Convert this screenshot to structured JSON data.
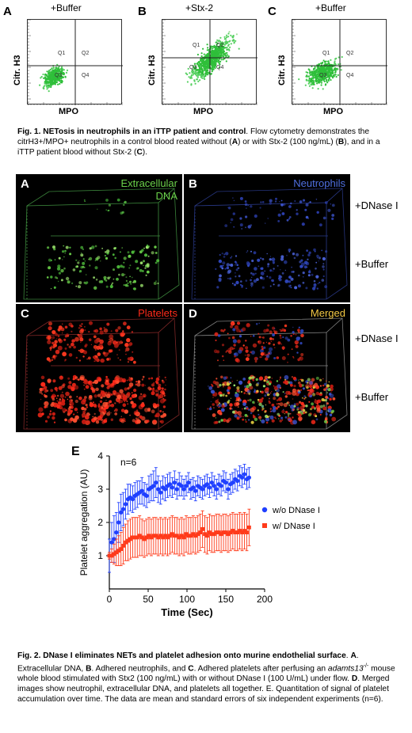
{
  "fig1": {
    "panels": [
      {
        "letter": "A",
        "condition": "+Buffer",
        "ylabel": "Citr. H3",
        "xlabel": "MPO",
        "quadrants": [
          "Q1",
          "Q2",
          "Q3",
          "Q4"
        ]
      },
      {
        "letter": "B",
        "condition": "+Stx-2",
        "ylabel": "Citr. H3",
        "xlabel": "MPO",
        "quadrants": [
          "Q1",
          "Q2",
          "Q3",
          "Q4"
        ]
      },
      {
        "letter": "C",
        "condition": "+Buffer",
        "ylabel": "Citr. H3",
        "xlabel": "MPO",
        "quadrants": [
          "Q1",
          "Q2",
          "Q3",
          "Q4"
        ]
      }
    ],
    "caption_bold": "Fig. 1. NETosis in neutrophils in an iTTP patient and control",
    "caption_lines": [
      ". Flow cytometry",
      "demonstrates the citrH3+/MPO+ neutrophils in a control blood reated without (",
      "A",
      ") or",
      "with Stx-2 (100 ng/mL) (",
      "B",
      "), and in a iTTP patient blood without Stx-2 (",
      "C",
      ")."
    ]
  },
  "fig2": {
    "panels": [
      {
        "letter": "A",
        "label": "Extracellular DNA",
        "label_line1": "Extracellular",
        "label_line2": "DNA",
        "color": "#6bd14a"
      },
      {
        "letter": "B",
        "label": "Neutrophils",
        "color": "#4f6fe0"
      },
      {
        "letter": "C",
        "label": "Platelets",
        "color": "#ff2a1a"
      },
      {
        "letter": "D",
        "label": "Merged",
        "color": "#f2c744"
      }
    ],
    "side_labels": [
      "+DNase I",
      "+Buffer",
      "+DNase I",
      "+Buffer"
    ],
    "caption": {
      "bold": "Fig. 2. DNase I eliminates NETs and platelet adhesion onto murine endothelial surface",
      "p1": ". ",
      "a": "A",
      "t1": ". Extracellular DNA, ",
      "b": "B",
      "t2": ". Adhered neutrophils, and ",
      "c": "C",
      "t3": ". Adhered platelets after perfusing an ",
      "gene": "adamts13",
      "sup": "-/-",
      "t4": " mouse whole blood stimulated with Stx2 (100 ng/mL) with or without DNase I (100 U/mL) under flow. ",
      "d": "D",
      "t5": ". Merged images show neutrophil, extracellular DNA, and platelets all together. E. Quantitation of signal of platelet accumulation over time. The data are mean and standard errors of six independent experiments (n=6)."
    }
  },
  "chart_data": {
    "type": "scatter",
    "letter": "E",
    "annotation": "n=6",
    "xlabel": "Time (Sec)",
    "ylabel": "Platelet aggregation (AU)",
    "xlim": [
      0,
      200
    ],
    "ylim": [
      0,
      4
    ],
    "xticks": [
      0,
      50,
      100,
      150,
      200
    ],
    "yticks": [
      1,
      2,
      3,
      4
    ],
    "legend_position": "right",
    "series": [
      {
        "name": "w/o DNase I",
        "color": "#1f3fff",
        "marker": "circle",
        "x": [
          0,
          3,
          6,
          9,
          12,
          15,
          18,
          21,
          24,
          27,
          30,
          33,
          36,
          39,
          42,
          45,
          48,
          51,
          54,
          57,
          60,
          63,
          66,
          69,
          72,
          75,
          78,
          81,
          84,
          87,
          90,
          93,
          96,
          99,
          102,
          105,
          108,
          111,
          114,
          117,
          120,
          123,
          126,
          129,
          132,
          135,
          138,
          141,
          144,
          147,
          150,
          153,
          156,
          159,
          162,
          165,
          168,
          171,
          174,
          177,
          180
        ],
        "y": [
          1.0,
          1.4,
          1.5,
          1.7,
          2.0,
          2.3,
          2.4,
          2.55,
          2.7,
          2.75,
          2.7,
          2.8,
          2.85,
          2.9,
          2.95,
          2.85,
          2.8,
          3.0,
          3.05,
          3.1,
          3.2,
          3.0,
          2.9,
          3.05,
          3.0,
          3.1,
          3.15,
          3.05,
          3.2,
          3.0,
          3.15,
          3.1,
          3.0,
          3.1,
          3.2,
          3.0,
          3.05,
          2.95,
          3.1,
          3.05,
          3.0,
          3.1,
          3.15,
          3.05,
          3.2,
          3.1,
          3.0,
          3.15,
          3.1,
          3.25,
          3.2,
          3.0,
          3.15,
          3.2,
          3.3,
          3.25,
          3.4,
          3.35,
          3.45,
          3.3,
          3.35
        ],
        "err": [
          0.5,
          0.6,
          0.7,
          0.6,
          0.6,
          0.55,
          0.5,
          0.45,
          0.45,
          0.4,
          0.4,
          0.4,
          0.4,
          0.35,
          0.4,
          0.35,
          0.35,
          0.4,
          0.4,
          0.45,
          0.45,
          0.4,
          0.35,
          0.35,
          0.35,
          0.35,
          0.35,
          0.3,
          0.35,
          0.3,
          0.35,
          0.3,
          0.3,
          0.3,
          0.3,
          0.3,
          0.3,
          0.3,
          0.3,
          0.3,
          0.3,
          0.3,
          0.3,
          0.3,
          0.3,
          0.3,
          0.3,
          0.3,
          0.3,
          0.3,
          0.3,
          0.3,
          0.3,
          0.3,
          0.3,
          0.3,
          0.3,
          0.3,
          0.3,
          0.3,
          0.3
        ]
      },
      {
        "name": "w/ DNase I",
        "color": "#ff3a1a",
        "marker": "square",
        "x": [
          0,
          3,
          6,
          9,
          12,
          15,
          18,
          21,
          24,
          27,
          30,
          33,
          36,
          39,
          42,
          45,
          48,
          51,
          54,
          57,
          60,
          63,
          66,
          69,
          72,
          75,
          78,
          81,
          84,
          87,
          90,
          93,
          96,
          99,
          102,
          105,
          108,
          111,
          114,
          117,
          120,
          123,
          126,
          129,
          132,
          135,
          138,
          141,
          144,
          147,
          150,
          153,
          156,
          159,
          162,
          165,
          168,
          171,
          174,
          177,
          180
        ],
        "y": [
          1.0,
          1.0,
          1.05,
          1.1,
          1.15,
          1.2,
          1.3,
          1.4,
          1.45,
          1.5,
          1.55,
          1.55,
          1.55,
          1.6,
          1.55,
          1.5,
          1.55,
          1.6,
          1.55,
          1.6,
          1.6,
          1.55,
          1.6,
          1.55,
          1.6,
          1.55,
          1.6,
          1.65,
          1.6,
          1.6,
          1.55,
          1.6,
          1.55,
          1.65,
          1.6,
          1.6,
          1.65,
          1.6,
          1.65,
          1.7,
          1.8,
          1.65,
          1.6,
          1.7,
          1.65,
          1.65,
          1.7,
          1.7,
          1.65,
          1.7,
          1.7,
          1.65,
          1.7,
          1.75,
          1.7,
          1.7,
          1.75,
          1.7,
          1.75,
          1.7,
          1.85
        ],
        "err": [
          0.1,
          0.2,
          0.3,
          0.4,
          0.45,
          0.5,
          0.55,
          0.55,
          0.6,
          0.6,
          0.6,
          0.6,
          0.6,
          0.6,
          0.55,
          0.55,
          0.55,
          0.55,
          0.55,
          0.55,
          0.55,
          0.55,
          0.55,
          0.55,
          0.55,
          0.55,
          0.55,
          0.55,
          0.55,
          0.55,
          0.55,
          0.55,
          0.55,
          0.55,
          0.55,
          0.55,
          0.55,
          0.55,
          0.55,
          0.55,
          0.55,
          0.55,
          0.55,
          0.55,
          0.55,
          0.55,
          0.55,
          0.55,
          0.55,
          0.55,
          0.55,
          0.55,
          0.55,
          0.55,
          0.55,
          0.55,
          0.55,
          0.55,
          0.55,
          0.55,
          0.55
        ]
      }
    ]
  }
}
